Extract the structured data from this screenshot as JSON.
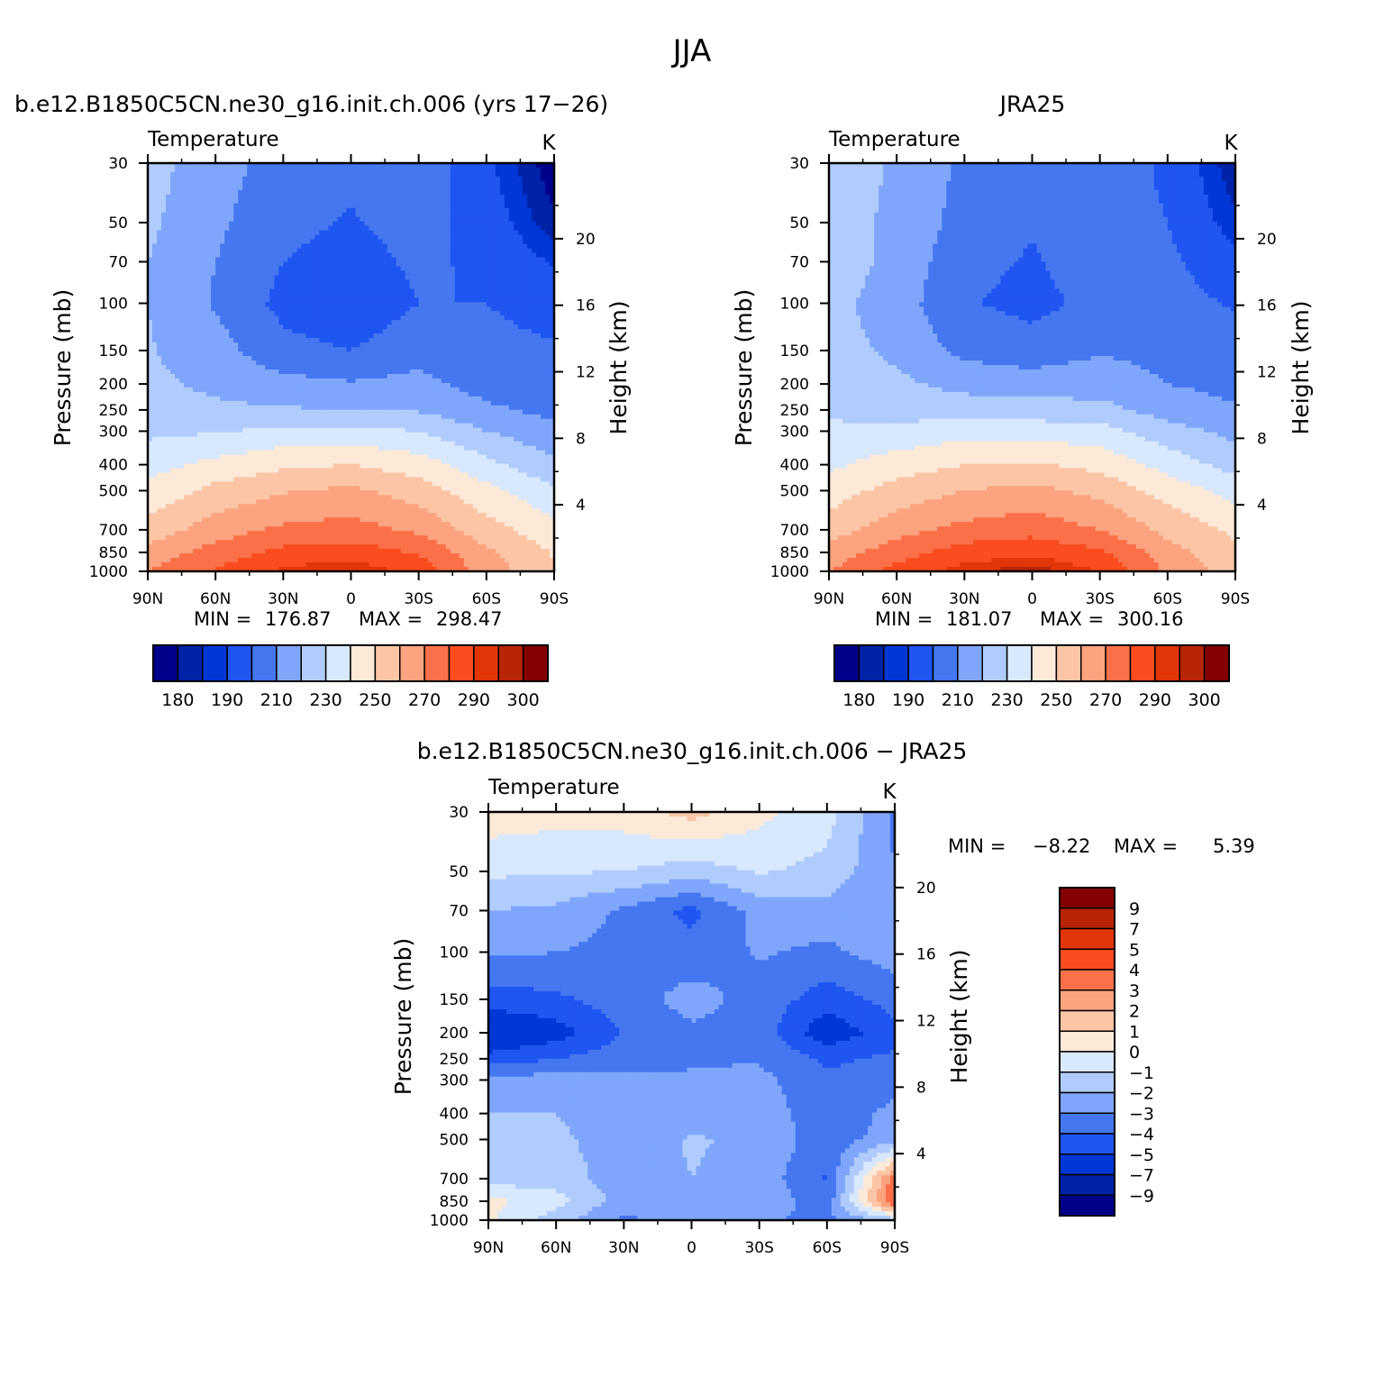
{
  "figure": {
    "title": "JJA"
  },
  "palettes": {
    "abs": [
      "#00008b",
      "#0022a8",
      "#0037d6",
      "#1f55f0",
      "#4477f0",
      "#7fa6fa",
      "#b0ccfd",
      "#d8e8fd",
      "#fde9d7",
      "#fcc5a6",
      "#fca380",
      "#fb7048",
      "#fa4c1f",
      "#e23508",
      "#b82406",
      "#850000"
    ],
    "diff": [
      "#00008b",
      "#0022a8",
      "#0037d6",
      "#1f55f0",
      "#4477f0",
      "#7fa6fa",
      "#b0ccfd",
      "#d8e8fd",
      "#fde9d7",
      "#fcc5a6",
      "#fca380",
      "#fb7048",
      "#fa4c1f",
      "#e23508",
      "#b82406",
      "#850000"
    ]
  },
  "chart_data": [
    {
      "type": "heatmap",
      "panel_title": "b.e12.B1850C5CN.ne30_g16.init.ch.006 (yrs 17−26)",
      "variable": "Temperature",
      "units": "K",
      "xlabel": "",
      "ylabel": "Pressure (mb)",
      "ylabel_right": "Height (km)",
      "x_ticks": [
        "90N",
        "60N",
        "30N",
        "0",
        "30S",
        "60S",
        "90S"
      ],
      "y_ticks": [
        "30",
        "50",
        "70",
        "100",
        "150",
        "200",
        "250",
        "300",
        "400",
        "500",
        "700",
        "850",
        "1000"
      ],
      "y_ticks_right": [
        "20",
        "16",
        "12",
        "8",
        "4"
      ],
      "stats": {
        "min_label": "MIN =",
        "min": "176.87",
        "max_label": "MAX =",
        "max": "298.47"
      },
      "contour_levels": [
        180,
        185,
        190,
        200,
        210,
        220,
        230,
        240,
        250,
        260,
        270,
        280,
        290,
        295,
        300
      ],
      "colorbar_labels": [
        "180",
        "190",
        "210",
        "230",
        "250",
        "270",
        "290",
        "300"
      ],
      "field": {
        "lat_nodes": [
          90,
          60,
          30,
          0,
          -30,
          -60,
          -90
        ],
        "p_nodes": [
          30,
          50,
          70,
          100,
          150,
          200,
          250,
          300,
          400,
          500,
          700,
          850,
          1000
        ],
        "values": [
          [
            224,
            214,
            206,
            203,
            207,
            192,
            176
          ],
          [
            222,
            212,
            203,
            199,
            204,
            195,
            181
          ],
          [
            220,
            210,
            200,
            196,
            202,
            198,
            189
          ],
          [
            220,
            209,
            197,
            193,
            200,
            200,
            196
          ],
          [
            221,
            214,
            203,
            200,
            206,
            203,
            201
          ],
          [
            222,
            218,
            213,
            211,
            213,
            206,
            203
          ],
          [
            224,
            222,
            221,
            220,
            219,
            212,
            207
          ],
          [
            228,
            229,
            233,
            233,
            230,
            220,
            213
          ],
          [
            236,
            243,
            248,
            250,
            245,
            233,
            222
          ],
          [
            243,
            253,
            259,
            262,
            255,
            243,
            232
          ],
          [
            254,
            265,
            272,
            274,
            268,
            254,
            244
          ],
          [
            264,
            274,
            283,
            285,
            279,
            262,
            249
          ],
          [
            270,
            281,
            292,
            296,
            287,
            265,
            252
          ]
        ]
      }
    },
    {
      "type": "heatmap",
      "panel_title": "JRA25",
      "variable": "Temperature",
      "units": "K",
      "xlabel": "",
      "ylabel": "Pressure (mb)",
      "ylabel_right": "Height (km)",
      "x_ticks": [
        "90N",
        "60N",
        "30N",
        "0",
        "30S",
        "60S",
        "90S"
      ],
      "y_ticks": [
        "30",
        "50",
        "70",
        "100",
        "150",
        "200",
        "250",
        "300",
        "400",
        "500",
        "700",
        "850",
        "1000"
      ],
      "y_ticks_right": [
        "20",
        "16",
        "12",
        "8",
        "4"
      ],
      "stats": {
        "min_label": "MIN =",
        "min": "181.07",
        "max_label": "MAX =",
        "max": "300.16"
      },
      "contour_levels": [
        180,
        185,
        190,
        200,
        210,
        220,
        230,
        240,
        250,
        260,
        270,
        280,
        290,
        295,
        300
      ],
      "colorbar_labels": [
        "180",
        "190",
        "210",
        "230",
        "250",
        "270",
        "290",
        "300"
      ],
      "field": {
        "lat_nodes": [
          90,
          60,
          30,
          0,
          -30,
          -60,
          -90
        ],
        "p_nodes": [
          30,
          50,
          70,
          100,
          150,
          200,
          250,
          300,
          400,
          500,
          700,
          850,
          1000
        ],
        "values": [
          [
            225,
            219,
            208,
            205,
            210,
            197,
            181
          ],
          [
            224,
            218,
            206,
            201,
            207,
            200,
            186
          ],
          [
            226,
            217,
            203,
            199,
            205,
            202,
            193
          ],
          [
            223,
            215,
            201,
            197,
            203,
            204,
            199
          ],
          [
            224,
            218,
            207,
            204,
            209,
            207,
            205
          ],
          [
            226,
            222,
            217,
            215,
            216,
            210,
            207
          ],
          [
            228,
            226,
            225,
            224,
            223,
            216,
            211
          ],
          [
            232,
            233,
            236,
            236,
            234,
            224,
            217
          ],
          [
            238,
            245,
            250,
            251,
            247,
            236,
            226
          ],
          [
            245,
            254,
            260,
            263,
            257,
            246,
            236
          ],
          [
            255,
            266,
            273,
            276,
            270,
            257,
            248
          ],
          [
            264,
            276,
            285,
            288,
            282,
            264,
            252
          ],
          [
            270,
            283,
            294,
            298,
            290,
            268,
            255
          ]
        ]
      }
    },
    {
      "type": "heatmap",
      "panel_title": "b.e12.B1850C5CN.ne30_g16.init.ch.006 − JRA25",
      "variable": "Temperature",
      "units": "K",
      "xlabel": "",
      "ylabel": "Pressure (mb)",
      "ylabel_right": "Height (km)",
      "x_ticks": [
        "90N",
        "60N",
        "30N",
        "0",
        "30S",
        "60S",
        "90S"
      ],
      "y_ticks": [
        "30",
        "50",
        "70",
        "100",
        "150",
        "200",
        "250",
        "300",
        "400",
        "500",
        "700",
        "850",
        "1000"
      ],
      "y_ticks_right": [
        "20",
        "16",
        "12",
        "8",
        "4"
      ],
      "stats": {
        "min_label": "MIN =",
        "min": "−8.22",
        "max_label": "MAX =",
        "max": "5.39"
      },
      "contour_levels": [
        -9,
        -7,
        -5,
        -4,
        -3,
        -2,
        -1,
        0,
        1,
        2,
        3,
        4,
        5,
        7,
        9
      ],
      "colorbar_labels": [
        "9",
        "7",
        "5",
        "4",
        "3",
        "2",
        "1",
        "0",
        "−1",
        "−2",
        "−3",
        "−4",
        "−5",
        "−7",
        "−9"
      ],
      "field": {
        "lat_nodes": [
          90,
          60,
          30,
          0,
          -30,
          -60,
          -90
        ],
        "p_nodes": [
          30,
          50,
          70,
          100,
          150,
          200,
          250,
          300,
          400,
          500,
          700,
          850,
          1000
        ],
        "values": [
          [
            0.6,
            0.4,
            0.5,
            1.4,
            0.3,
            -0.6,
            -3.2
          ],
          [
            -0.8,
            -0.9,
            -1.0,
            -1.5,
            -0.9,
            -1.3,
            -3.0
          ],
          [
            -2.0,
            -2.2,
            -3.2,
            -4.3,
            -2.6,
            -2.4,
            -3.0
          ],
          [
            -2.8,
            -3.0,
            -3.3,
            -3.6,
            -2.9,
            -3.2,
            -2.5
          ],
          [
            -4.5,
            -4.2,
            -3.5,
            -2.6,
            -3.4,
            -4.5,
            -3.6
          ],
          [
            -6.2,
            -5.5,
            -3.9,
            -3.2,
            -3.4,
            -5.8,
            -4.3
          ],
          [
            -4.6,
            -4.0,
            -3.5,
            -3.1,
            -3.1,
            -4.2,
            -3.8
          ],
          [
            -2.7,
            -2.5,
            -2.8,
            -2.9,
            -2.7,
            -3.8,
            -3.4
          ],
          [
            -2.0,
            -2.0,
            -2.6,
            -2.4,
            -2.4,
            -3.7,
            -2.7
          ],
          [
            -1.8,
            -1.8,
            -2.5,
            -1.9,
            -2.2,
            -3.6,
            -2.5
          ],
          [
            -1.5,
            -1.5,
            -2.5,
            -2.0,
            -2.4,
            -4.1,
            3.5
          ],
          [
            0.3,
            -0.6,
            -2.5,
            -2.0,
            -2.2,
            -3.7,
            4.3
          ],
          [
            0.2,
            -1.6,
            -3.2,
            -2.6,
            -2.9,
            -3.2,
            -1.5
          ]
        ]
      }
    }
  ]
}
